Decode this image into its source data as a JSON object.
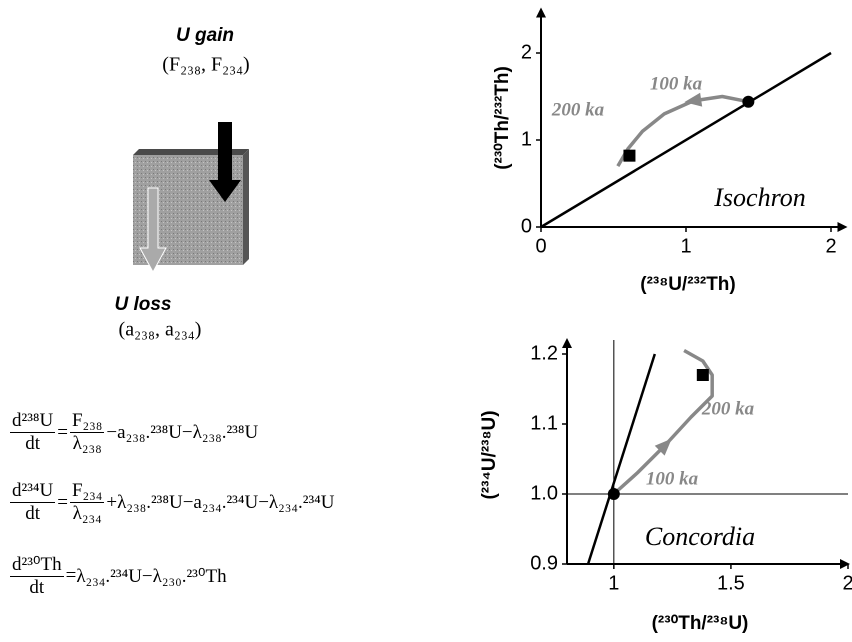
{
  "diagram": {
    "gain_label": "U gain",
    "gain_params": "(F₂₃₈, F₂₃₄)",
    "loss_label": "U loss",
    "loss_params": "(a₂₃₈, a₂₃₄)"
  },
  "equations": [
    {
      "lhs_num": "d²³⁸U",
      "lhs_den": "dt",
      "eq": "=",
      "frac_num": "F₂₃₈",
      "frac_den": "λ₂₃₈",
      "rhs": "−a₂₃₈.²³⁸U−λ₂₃₈.²³⁸U"
    },
    {
      "lhs_num": "d²³⁴U",
      "lhs_den": "dt",
      "eq": "=",
      "frac_num": "F₂₃₄",
      "frac_den": "λ₂₃₄",
      "rhs": "+λ₂₃₈.²³⁸U−a₂₃₄.²³⁴U−λ₂₃₄.²³⁴U"
    },
    {
      "lhs_num": "d²³⁰Th",
      "lhs_den": "dt",
      "eq": "=",
      "rhs": "λ₂₃₄.²³⁴U−λ₂₃₀.²³⁰Th"
    }
  ],
  "chart_data": [
    {
      "type": "line",
      "xlabel": "(²³⁸U/²³²Th)",
      "ylabel": "(²³⁰Th/²³²Th)",
      "xlim": [
        0,
        2.1
      ],
      "ylim": [
        0,
        2.5
      ],
      "xticks": [
        0,
        1,
        2
      ],
      "yticks": [
        0,
        1,
        2
      ],
      "lines": [
        {
          "x": [
            0,
            2
          ],
          "y": [
            0,
            2
          ]
        }
      ],
      "curve": {
        "x": [
          1.43,
          1.25,
          1.05,
          0.85,
          0.7,
          0.6,
          0.53
        ],
        "y": [
          1.44,
          1.5,
          1.45,
          1.3,
          1.1,
          0.9,
          0.7
        ],
        "color": "#888888"
      },
      "points": [
        {
          "shape": "circle",
          "x": 1.43,
          "y": 1.44
        },
        {
          "shape": "square",
          "x": 0.61,
          "y": 0.82
        }
      ],
      "annotations": [
        "200 ka",
        "100 ka",
        "Isochron"
      ]
    },
    {
      "type": "line",
      "xlabel": "(²³⁰Th/²³⁸U)",
      "ylabel": "(²³⁴U/²³⁸U)",
      "xlim": [
        0.8,
        2
      ],
      "ylim": [
        0.9,
        1.22
      ],
      "xticks": [
        1,
        1.5,
        2
      ],
      "yticks": [
        0.9,
        {
          "value": 1,
          "label": "1.0"
        },
        1.1,
        1.2
      ],
      "reflines": {
        "x": 1,
        "y": 1
      },
      "lines": [
        {
          "x": [
            0.89,
            1.175
          ],
          "y": [
            0.9,
            1.2
          ]
        }
      ],
      "curve": {
        "x": [
          1,
          1.1,
          1.22,
          1.33,
          1.42,
          1.42,
          1.38,
          1.3
        ],
        "y": [
          1,
          1.03,
          1.07,
          1.11,
          1.14,
          1.17,
          1.19,
          1.205
        ],
        "color": "#888888"
      },
      "points": [
        {
          "shape": "circle",
          "x": 1,
          "y": 1
        },
        {
          "shape": "square",
          "x": 1.38,
          "y": 1.17
        }
      ],
      "annotations": [
        "200 ka",
        "100 ka",
        "Concordia"
      ]
    }
  ]
}
